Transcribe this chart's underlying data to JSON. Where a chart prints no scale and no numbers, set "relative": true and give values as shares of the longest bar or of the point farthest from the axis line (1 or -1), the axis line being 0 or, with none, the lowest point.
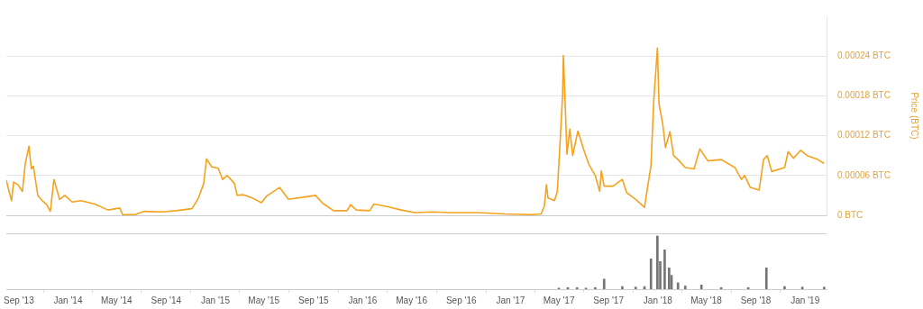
{
  "chart_data": [
    {
      "type": "line",
      "ylabel": "Price (BTC)",
      "xlim": [
        "2013-08-01",
        "2019-02-23"
      ],
      "ylim": [
        0,
        0.0003
      ],
      "yticks": [
        {
          "value": 0,
          "label": "0 BTC"
        },
        {
          "value": 6e-05,
          "label": "0.00006 BTC"
        },
        {
          "value": 0.00012,
          "label": "0.00012 BTC"
        },
        {
          "value": 0.00018,
          "label": "0.00018 BTC"
        },
        {
          "value": 0.00024,
          "label": "0.00024 BTC"
        }
      ],
      "grid": "y",
      "tick_labels": "y",
      "legend": false,
      "marker": "none",
      "line_style": "solid",
      "series": [
        {
          "color": "#f5a21e",
          "x": [
            "2013-08-01",
            "2013-08-07",
            "2013-08-14",
            "2013-08-19",
            "2013-08-30",
            "2013-09-10",
            "2013-09-17",
            "2013-09-26",
            "2013-10-02",
            "2013-10-07",
            "2013-10-18",
            "2013-10-29",
            "2013-11-09",
            "2013-11-18",
            "2013-11-27",
            "2013-12-11",
            "2013-12-24",
            "2014-01-11",
            "2014-02-02",
            "2014-03-08",
            "2014-04-10",
            "2014-05-09",
            "2014-05-16",
            "2014-06-16",
            "2014-07-09",
            "2014-08-22",
            "2014-09-25",
            "2014-11-04",
            "2014-11-20",
            "2014-12-03",
            "2014-12-10",
            "2014-12-23",
            "2015-01-08",
            "2015-01-19",
            "2015-01-30",
            "2015-02-17",
            "2015-02-24",
            "2015-03-11",
            "2015-04-03",
            "2015-04-25",
            "2015-05-08",
            "2015-06-09",
            "2015-07-01",
            "2015-08-15",
            "2015-09-06",
            "2015-09-24",
            "2015-10-21",
            "2015-11-23",
            "2015-12-02",
            "2015-12-16",
            "2016-01-18",
            "2016-01-29",
            "2016-03-03",
            "2016-04-05",
            "2016-05-09",
            "2016-06-22",
            "2016-08-06",
            "2016-10-12",
            "2016-12-18",
            "2017-02-23",
            "2017-03-18",
            "2017-03-26",
            "2017-03-31",
            "2017-04-04",
            "2017-04-20",
            "2017-04-27",
            "2017-05-03",
            "2017-05-10",
            "2017-05-12",
            "2017-05-17",
            "2017-05-21",
            "2017-05-28",
            "2017-06-04",
            "2017-06-17",
            "2017-07-03",
            "2017-07-14",
            "2017-07-30",
            "2017-08-10",
            "2017-08-14",
            "2017-08-21",
            "2017-09-12",
            "2017-10-05",
            "2017-10-16",
            "2017-11-07",
            "2017-11-29",
            "2017-12-06",
            "2017-12-15",
            "2017-12-22",
            "2017-12-31",
            "2018-01-04",
            "2018-01-13",
            "2018-01-20",
            "2018-01-31",
            "2018-02-09",
            "2018-02-20",
            "2018-03-10",
            "2018-04-01",
            "2018-04-15",
            "2018-05-05",
            "2018-06-07",
            "2018-07-11",
            "2018-07-27",
            "2018-08-04",
            "2018-08-18",
            "2018-09-09",
            "2018-09-20",
            "2018-09-29",
            "2018-10-10",
            "2018-11-11",
            "2018-11-20",
            "2018-12-03",
            "2018-12-21",
            "2019-01-06",
            "2019-02-01",
            "2019-02-17"
          ],
          "values": [
            5.3e-05,
            3.8e-05,
            2.2e-05,
            5e-05,
            4.6e-05,
            3.6e-05,
            7.8e-05,
            0.000104,
            7e-05,
            7.4e-05,
            3e-05,
            2.2e-05,
            1.6e-05,
            6e-06,
            5.4e-05,
            2.4e-05,
            3e-05,
            2e-05,
            2.2e-05,
            1.7e-05,
            8e-06,
            1.1e-05,
            1e-06,
            1e-06,
            6e-06,
            5e-06,
            7e-06,
            1e-05,
            2.6e-05,
            4.8e-05,
            8.5e-05,
            7.3e-05,
            7.1e-05,
            5.4e-05,
            6e-05,
            4.8e-05,
            3e-05,
            3.1e-05,
            2.6e-05,
            1.9e-05,
            2.9e-05,
            4.2e-05,
            2.4e-05,
            2.8e-05,
            3e-05,
            1.8e-05,
            7e-06,
            7e-06,
            1.6e-05,
            8e-06,
            7e-06,
            1.7e-05,
            1.3e-05,
            8e-06,
            4e-06,
            5e-06,
            4e-06,
            4e-06,
            2e-06,
            1e-06,
            2e-06,
            1.4e-05,
            4.6e-05,
            2.6e-05,
            2.2e-05,
            3.6e-05,
            0.0001,
            0.00018,
            0.000241,
            0.00016,
            9.2e-05,
            0.00013,
            9e-05,
            0.000127,
            9.6e-05,
            7.7e-05,
            6e-05,
            3.6e-05,
            6.7e-05,
            4.4e-05,
            4.4e-05,
            5.4e-05,
            3.4e-05,
            2.4e-05,
            1.2e-05,
            4e-05,
            7.4e-05,
            0.000174,
            0.000252,
            0.000168,
            0.000138,
            0.000102,
            0.000126,
            9e-05,
            8.4e-05,
            7.2e-05,
            7e-05,
            0.0001,
            8.2e-05,
            8.4e-05,
            7.2e-05,
            5.4e-05,
            6e-05,
            4.2e-05,
            3.8e-05,
            8.4e-05,
            9e-05,
            6.6e-05,
            7.2e-05,
            9.6e-05,
            8.6e-05,
            9.8e-05,
            9e-05,
            8.4e-05,
            7.8e-05
          ]
        }
      ]
    },
    {
      "type": "bar",
      "relative": true,
      "xlim": [
        "2013-08-01",
        "2019-02-23"
      ],
      "xticks": [
        {
          "value": "2013-09-01",
          "label": "Sep '13"
        },
        {
          "value": "2014-01-01",
          "label": "Jan '14"
        },
        {
          "value": "2014-05-01",
          "label": "May '14"
        },
        {
          "value": "2014-09-01",
          "label": "Sep '14"
        },
        {
          "value": "2015-01-01",
          "label": "Jan '15"
        },
        {
          "value": "2015-05-01",
          "label": "May '15"
        },
        {
          "value": "2015-09-01",
          "label": "Sep '15"
        },
        {
          "value": "2016-01-01",
          "label": "Jan '16"
        },
        {
          "value": "2016-05-01",
          "label": "May '16"
        },
        {
          "value": "2016-09-01",
          "label": "Sep '16"
        },
        {
          "value": "2017-01-01",
          "label": "Jan '17"
        },
        {
          "value": "2017-05-01",
          "label": "May '17"
        },
        {
          "value": "2017-09-01",
          "label": "Sep '17"
        },
        {
          "value": "2018-01-01",
          "label": "Jan '18"
        },
        {
          "value": "2018-05-01",
          "label": "May '18"
        },
        {
          "value": "2018-09-01",
          "label": "Sep '18"
        },
        {
          "value": "2019-01-01",
          "label": "Jan '19"
        }
      ],
      "tick_labels": "x",
      "grid": false,
      "legend": false,
      "series": [
        {
          "color": "#757575",
          "x": [
            "2017-05-01",
            "2017-05-23",
            "2017-06-15",
            "2017-07-07",
            "2017-07-30",
            "2017-08-21",
            "2017-10-05",
            "2017-11-07",
            "2017-11-29",
            "2017-12-15",
            "2017-12-31",
            "2018-01-07",
            "2018-01-18",
            "2018-01-29",
            "2018-02-04",
            "2018-02-20",
            "2018-03-10",
            "2018-04-19",
            "2018-06-07",
            "2018-08-13",
            "2018-09-27",
            "2018-11-11",
            "2018-12-25",
            "2019-02-17"
          ],
          "values": [
            0.02,
            0.03,
            0.03,
            0.02,
            0.03,
            0.19,
            0.05,
            0.04,
            0.05,
            0.57,
            1,
            0.52,
            0.74,
            0.4,
            0.26,
            0.12,
            0.06,
            0.08,
            0.03,
            0.03,
            0.4,
            0.05,
            0.04,
            0.04
          ]
        }
      ]
    }
  ]
}
